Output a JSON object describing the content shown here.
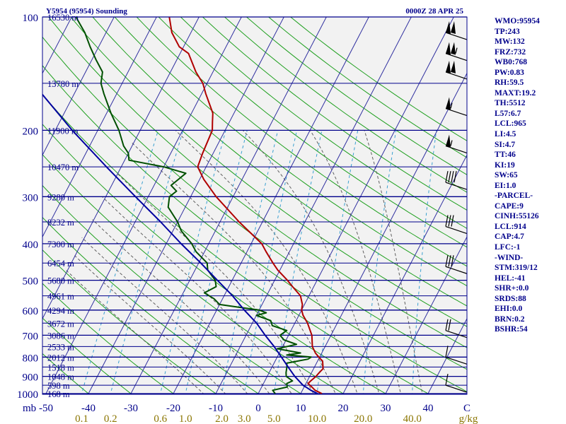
{
  "header": {
    "station": "Y5954 (95954) Sounding",
    "valid_time": "0000Z 28 APR 25"
  },
  "stats": [
    "WMO:95954",
    "TP:243",
    "MW:132",
    "FRZ:732",
    "WB0:768",
    "PW:0.83",
    "RH:59.5",
    "MAXT:19.2",
    "TH:5512",
    "L57:6.7",
    "LCL:965",
    "LI:4.5",
    "SI:4.7",
    "TT:46",
    "KI:19",
    "SW:65",
    "EI:1.0",
    "-PARCEL-",
    "CAPE:9",
    "CINH:55126",
    "LCL:914",
    "CAP:4.7",
    "LFC:-1",
    "-WIND-",
    "STM:319/12",
    "HEL:-41",
    "SHR+:0.0",
    "SRDS:88",
    "EHI:0.0",
    "BRN:0.2",
    "BSHR:54"
  ],
  "colors": {
    "temperature": "#b00000",
    "dewpoint": "#005000",
    "parcel": "#0000a0",
    "isobar": "#00008b",
    "isotherm": "#3030a0",
    "dry_adiabat": "#20a020",
    "moist_adiabat": "#606060",
    "mixing_ratio": "#3aa0d0",
    "text": "#00008b",
    "mixing_label": "#8b7500",
    "plot_bg": "#f2f2f2"
  },
  "chart_data": {
    "type": "line",
    "subtype": "skew-T log-P",
    "xlabel": "mb",
    "ylim_pressure": [
      1000,
      100
    ],
    "xlim_temperature_at_1000mb": [
      -50,
      50
    ],
    "pressure_ticks": [
      100,
      200,
      300,
      400,
      500,
      600,
      700,
      800,
      900,
      1000
    ],
    "temperature_ticks": [
      "-50",
      "-40",
      "-30",
      "-20",
      "-10",
      "0",
      "10",
      "20",
      "30",
      "40",
      "C"
    ],
    "mixing_ratio_ticks": [
      "0.1",
      "0.2",
      "0.6",
      "1.0",
      "2.0",
      "3.0",
      "5.0",
      "10.0",
      "20.0",
      "40.0",
      "g/kg"
    ],
    "height_labels": [
      {
        "p": 100,
        "label": "16530 m"
      },
      {
        "p": 150,
        "label": "13780 m"
      },
      {
        "p": 200,
        "label": "11900 m"
      },
      {
        "p": 250,
        "label": "10470 m"
      },
      {
        "p": 300,
        "label": "9280 m"
      },
      {
        "p": 350,
        "label": "8232 m"
      },
      {
        "p": 400,
        "label": "7300 m"
      },
      {
        "p": 450,
        "label": "6454 m"
      },
      {
        "p": 500,
        "label": "5680 m"
      },
      {
        "p": 550,
        "label": "4961 m"
      },
      {
        "p": 600,
        "label": "4294 m"
      },
      {
        "p": 650,
        "label": "3672 m"
      },
      {
        "p": 700,
        "label": "3086 m"
      },
      {
        "p": 750,
        "label": "2533 m"
      },
      {
        "p": 800,
        "label": "2012 m"
      },
      {
        "p": 850,
        "label": "1518 m"
      },
      {
        "p": 900,
        "label": "1048 m"
      },
      {
        "p": 950,
        "label": "598 m"
      },
      {
        "p": 1000,
        "label": "168 m"
      }
    ],
    "series": [
      {
        "key": "temperature",
        "points": [
          [
            1000,
            15.0
          ],
          [
            980,
            13.0
          ],
          [
            960,
            11.8
          ],
          [
            940,
            10.5
          ],
          [
            925,
            10.8
          ],
          [
            900,
            11.5
          ],
          [
            880,
            11.8
          ],
          [
            860,
            12.2
          ],
          [
            850,
            12.0
          ],
          [
            820,
            11.2
          ],
          [
            800,
            9.8
          ],
          [
            780,
            8.5
          ],
          [
            750,
            7.0
          ],
          [
            700,
            5.5
          ],
          [
            650,
            3.0
          ],
          [
            620,
            1.0
          ],
          [
            600,
            0.0
          ],
          [
            580,
            -0.5
          ],
          [
            550,
            -2.0
          ],
          [
            520,
            -5.0
          ],
          [
            500,
            -7.0
          ],
          [
            470,
            -10.5
          ],
          [
            450,
            -12.5
          ],
          [
            420,
            -15.5
          ],
          [
            400,
            -17.5
          ],
          [
            350,
            -25.5
          ],
          [
            300,
            -34.0
          ],
          [
            270,
            -39.0
          ],
          [
            250,
            -42.0
          ],
          [
            230,
            -42.5
          ],
          [
            200,
            -43.0
          ],
          [
            190,
            -44.0
          ],
          [
            180,
            -45.0
          ],
          [
            160,
            -49.0
          ],
          [
            150,
            -51.0
          ],
          [
            140,
            -54.0
          ],
          [
            125,
            -58.0
          ],
          [
            120,
            -61.0
          ],
          [
            110,
            -64.5
          ],
          [
            100,
            -67.0
          ]
        ]
      },
      {
        "key": "dewpoint",
        "points": [
          [
            1000,
            4.0
          ],
          [
            980,
            3.0
          ],
          [
            960,
            6.0
          ],
          [
            940,
            5.5
          ],
          [
            925,
            6.5
          ],
          [
            900,
            4.5
          ],
          [
            880,
            4.0
          ],
          [
            850,
            3.5
          ],
          [
            830,
            3.0
          ],
          [
            810,
            7.5
          ],
          [
            800,
            8.0
          ],
          [
            790,
            2.0
          ],
          [
            780,
            5.0
          ],
          [
            760,
            -1.0
          ],
          [
            740,
            3.0
          ],
          [
            720,
            -0.5
          ],
          [
            700,
            -2.0
          ],
          [
            680,
            -1.0
          ],
          [
            660,
            -5.0
          ],
          [
            640,
            -6.0
          ],
          [
            620,
            -10.0
          ],
          [
            610,
            -8.0
          ],
          [
            600,
            -10.0
          ],
          [
            590,
            -15.0
          ],
          [
            580,
            -20.0
          ],
          [
            560,
            -22.0
          ],
          [
            540,
            -25.0
          ],
          [
            520,
            -23.0
          ],
          [
            500,
            -24.0
          ],
          [
            470,
            -27.0
          ],
          [
            450,
            -28.0
          ],
          [
            420,
            -32.0
          ],
          [
            400,
            -34.0
          ],
          [
            370,
            -38.0
          ],
          [
            350,
            -40.0
          ],
          [
            320,
            -44.0
          ],
          [
            300,
            -45.0
          ],
          [
            290,
            -44.0
          ],
          [
            280,
            -46.0
          ],
          [
            270,
            -45.0
          ],
          [
            260,
            -44.0
          ],
          [
            250,
            -50.0
          ],
          [
            240,
            -59.0
          ],
          [
            230,
            -60.0
          ],
          [
            220,
            -62.0
          ],
          [
            200,
            -65.0
          ],
          [
            180,
            -69.0
          ],
          [
            160,
            -73.0
          ],
          [
            150,
            -75.0
          ],
          [
            140,
            -76.0
          ],
          [
            130,
            -79.0
          ],
          [
            120,
            -82.0
          ],
          [
            110,
            -85.0
          ],
          [
            100,
            -89.0
          ]
        ]
      },
      {
        "key": "parcel",
        "points": [
          [
            1000,
            14.0
          ],
          [
            980,
            12.0
          ],
          [
            965,
            10.8
          ],
          [
            950,
            9.5
          ],
          [
            900,
            6.5
          ],
          [
            850,
            3.8
          ],
          [
            800,
            1.0
          ],
          [
            750,
            -2.0
          ],
          [
            700,
            -5.5
          ],
          [
            650,
            -9.0
          ],
          [
            600,
            -13.5
          ],
          [
            550,
            -18.0
          ],
          [
            500,
            -23.5
          ],
          [
            450,
            -29.5
          ],
          [
            400,
            -36.5
          ],
          [
            350,
            -44.0
          ],
          [
            300,
            -53.0
          ],
          [
            250,
            -63.5
          ],
          [
            200,
            -76.0
          ],
          [
            150,
            -91.0
          ],
          [
            120,
            -103.0
          ]
        ]
      }
    ]
  },
  "wind_barbs": [
    {
      "p": 110,
      "speed_kt": 100
    },
    {
      "p": 125,
      "speed_kt": 105
    },
    {
      "p": 140,
      "speed_kt": 100
    },
    {
      "p": 175,
      "speed_kt": 55
    },
    {
      "p": 220,
      "speed_kt": 55
    },
    {
      "p": 275,
      "speed_kt": 40
    },
    {
      "p": 360,
      "speed_kt": 30
    },
    {
      "p": 460,
      "speed_kt": 30
    },
    {
      "p": 680,
      "speed_kt": 20
    },
    {
      "p": 800,
      "speed_kt": 10
    },
    {
      "p": 950,
      "speed_kt": 10
    }
  ]
}
